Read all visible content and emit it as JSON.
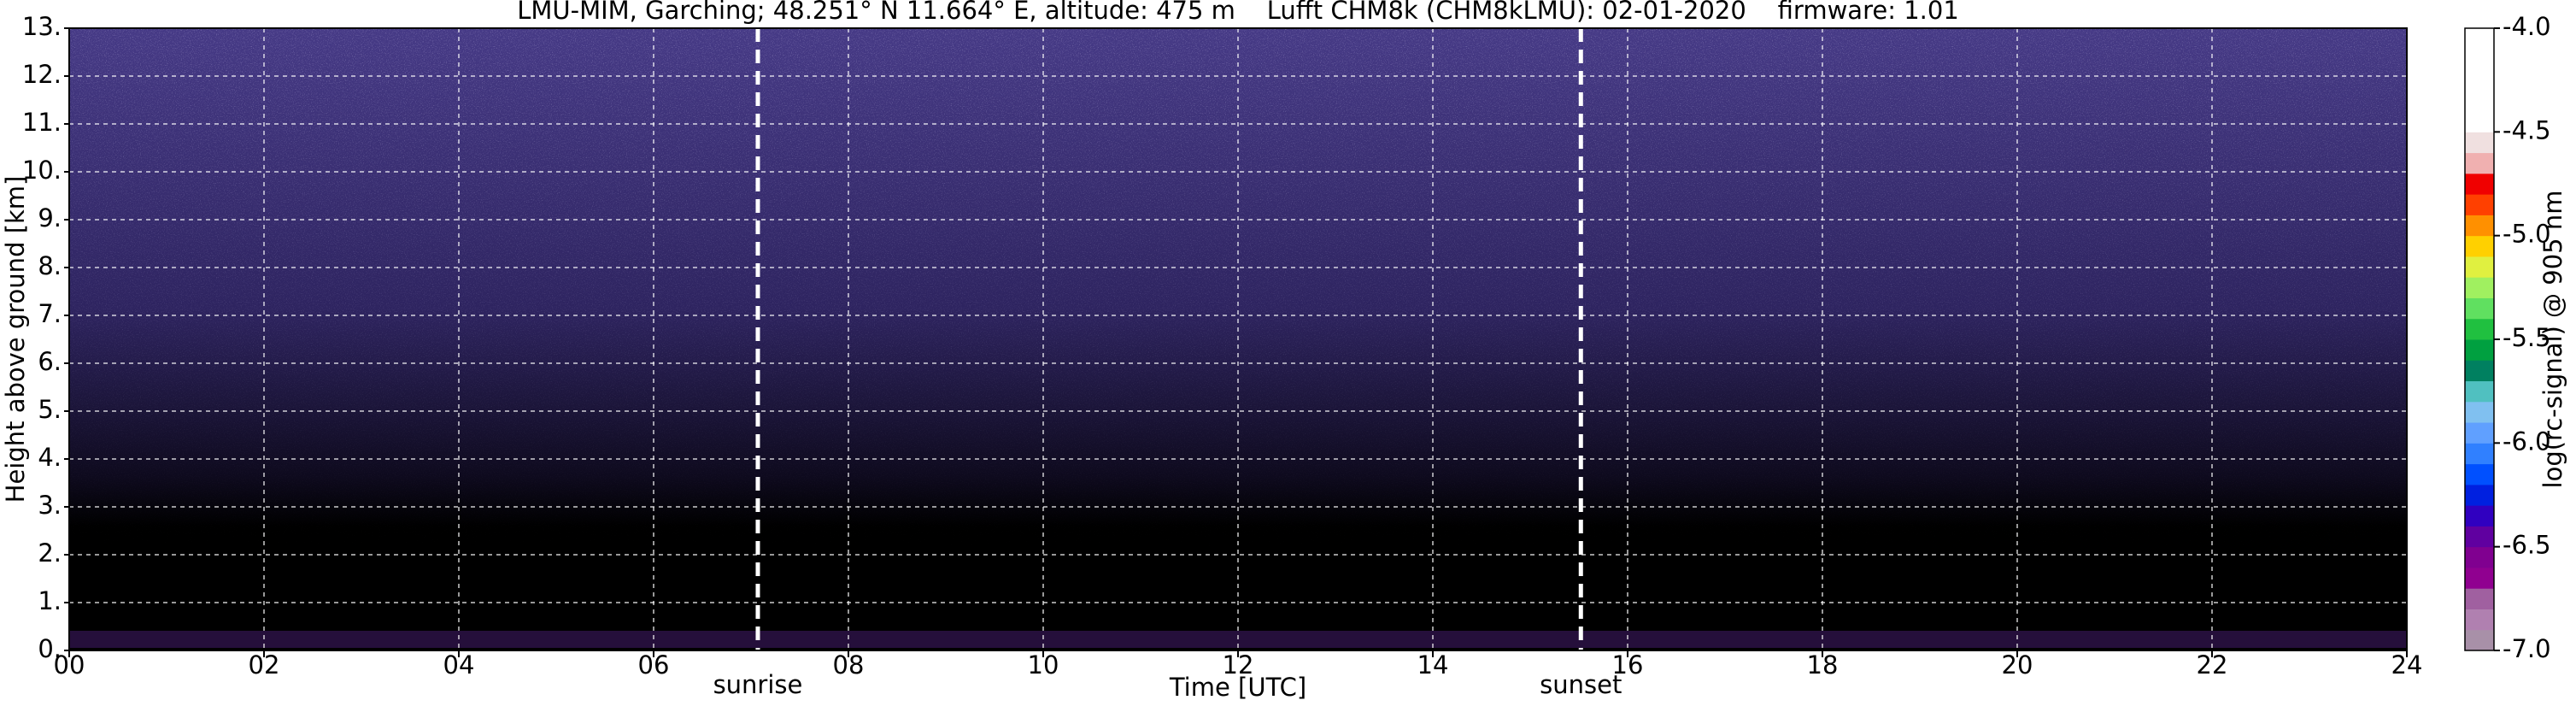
{
  "chart_data": {
    "type": "heatmap",
    "title": "LMU-MIM, Garching; 48.251° N 11.664° E, altitude: 475 m    Lufft CHM8k (CHM8kLMU): 02-01-2020    firmware: 1.01",
    "xlabel": "Time [UTC]",
    "ylabel": "Height above ground [km]",
    "xlim": [
      0,
      24
    ],
    "ylim": [
      0,
      13
    ],
    "xticks": [
      {
        "value": 0,
        "label": "00"
      },
      {
        "value": 2,
        "label": "02"
      },
      {
        "value": 4,
        "label": "04"
      },
      {
        "value": 6,
        "label": "06"
      },
      {
        "value": 8,
        "label": "08"
      },
      {
        "value": 10,
        "label": "10"
      },
      {
        "value": 12,
        "label": "12"
      },
      {
        "value": 14,
        "label": "14"
      },
      {
        "value": 16,
        "label": "16"
      },
      {
        "value": 18,
        "label": "18"
      },
      {
        "value": 20,
        "label": "20"
      },
      {
        "value": 22,
        "label": "22"
      },
      {
        "value": 24,
        "label": "24"
      }
    ],
    "yticks": [
      {
        "value": 0,
        "label": "0."
      },
      {
        "value": 1,
        "label": "1."
      },
      {
        "value": 2,
        "label": "2."
      },
      {
        "value": 3,
        "label": "3."
      },
      {
        "value": 4,
        "label": "4."
      },
      {
        "value": 5,
        "label": "5."
      },
      {
        "value": 6,
        "label": "6."
      },
      {
        "value": 7,
        "label": "7."
      },
      {
        "value": 8,
        "label": "8."
      },
      {
        "value": 9,
        "label": "9."
      },
      {
        "value": 10,
        "label": "10."
      },
      {
        "value": 11,
        "label": "11."
      },
      {
        "value": 12,
        "label": "12."
      },
      {
        "value": 13,
        "label": "13."
      }
    ],
    "grid": true,
    "annotations": [
      {
        "text": "sunrise",
        "x": 7.07
      },
      {
        "text": "sunset",
        "x": 15.52
      }
    ],
    "colorbar": {
      "label": "log(rc-signal) @ 905 nm",
      "clim": [
        -7.0,
        -4.0
      ],
      "ticks": [
        {
          "value": -4.0,
          "label": "-4.0"
        },
        {
          "value": -4.5,
          "label": "-4.5"
        },
        {
          "value": -5.0,
          "label": "-5.0"
        },
        {
          "value": -5.5,
          "label": "-5.5"
        },
        {
          "value": -6.0,
          "label": "-6.0"
        },
        {
          "value": -6.5,
          "label": "-6.5"
        },
        {
          "value": -7.0,
          "label": "-7.0"
        }
      ],
      "colors": [
        "#a890a8",
        "#b080b0",
        "#a060a0",
        "#900090",
        "#800090",
        "#6000a0",
        "#3000c0",
        "#0020e0",
        "#0050ff",
        "#3080ff",
        "#60a0ff",
        "#80c0f0",
        "#50c0c0",
        "#008060",
        "#00a040",
        "#20c040",
        "#60e060",
        "#a0f060",
        "#e0f040",
        "#ffd000",
        "#ff9000",
        "#ff4000",
        "#f00000",
        "#f0b0b0",
        "#f0e0e0",
        "#ffffff",
        "#ffffff",
        "#ffffff",
        "#ffffff",
        "#ffffff"
      ]
    }
  }
}
